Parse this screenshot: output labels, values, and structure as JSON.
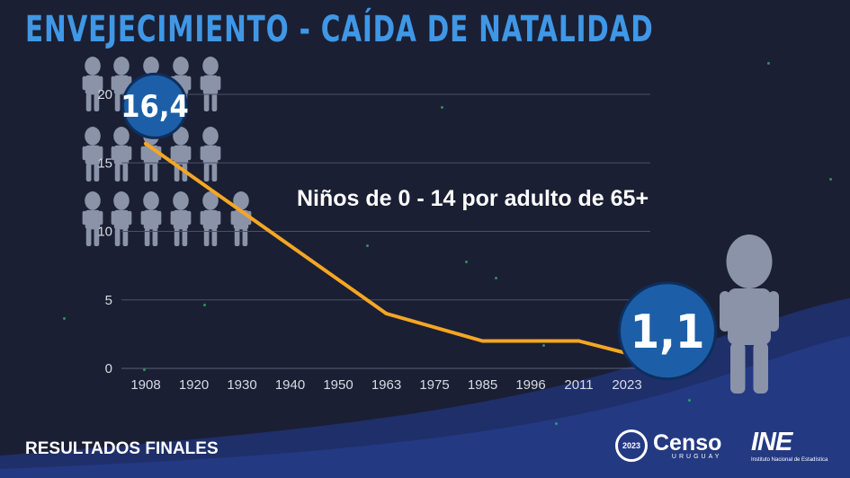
{
  "slide": {
    "title": "ENVEJECIMIENTO - CAÍDA DE NATALIDAD",
    "subtitle": "Niños de 0 - 14 por adulto de 65+",
    "footer_left": "RESULTADOS FINALES",
    "brand_censo": "Censo",
    "brand_censo_sub": "URUGUAY",
    "brand_censo_year": "2023",
    "brand_ine": "INE",
    "brand_ine_sub": "Instituto Nacional de Estadística"
  },
  "colors": {
    "background": "#1b1f33",
    "title": "#3f97e6",
    "line": "#f5a623",
    "bubble": "#1c5fa8",
    "figure": "#8a93a8",
    "wave": "#20387a"
  },
  "chart_data": {
    "type": "line",
    "title": "Niños de 0 - 14 por adulto de 65+",
    "xlabel": "",
    "ylabel": "",
    "categories": [
      "1908",
      "1920",
      "1930",
      "1940",
      "1950",
      "1963",
      "1975",
      "1985",
      "1996",
      "2011",
      "2023"
    ],
    "y_ticks": [
      0,
      5,
      10,
      15,
      20
    ],
    "ylim": [
      0,
      20
    ],
    "grid": true,
    "series": [
      {
        "points": [
          {
            "x": "1908",
            "y": 16.4
          },
          {
            "x": "1963",
            "y": 4.0
          },
          {
            "x": "1985",
            "y": 2.0
          },
          {
            "x": "2011",
            "y": 2.0
          },
          {
            "x": "2023",
            "y": 1.1
          }
        ]
      }
    ],
    "annotations": [
      {
        "x": "1908",
        "label": "16,4"
      },
      {
        "x": "2023",
        "label": "1,1"
      }
    ]
  }
}
